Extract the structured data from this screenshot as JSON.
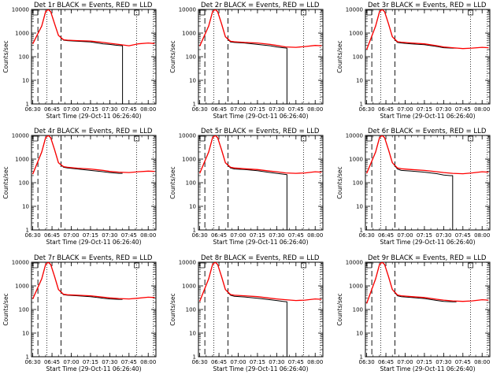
{
  "chart_data": [
    {
      "type": "line",
      "title": "Det 1r BLACK = Events, RED = LLD",
      "xlabel": "Start Time (29-Oct-11 06:26:40)",
      "ylabel": "Counts/sec",
      "x_ticks": [
        "06:30",
        "06:45",
        "07:00",
        "07:15",
        "07:30",
        "07:45",
        "08:00"
      ],
      "y_ticks": [
        "1",
        "10",
        "100",
        "1000",
        "10000"
      ],
      "xlim": [
        "06:29",
        "08:06"
      ],
      "ylim": [
        1,
        10000
      ],
      "y_scale": "log",
      "series": [
        {
          "color": "#000000",
          "x": [
            "06:30",
            "06:37",
            "06:40",
            "06:42",
            "06:44",
            "06:47",
            "06:50",
            "06:54",
            "06:57",
            "07:05",
            "07:15",
            "07:25",
            "07:30",
            "07:34",
            "07:37",
            "07:40",
            "07:40",
            "07:40"
          ],
          "y": [
            350,
            2000,
            8000,
            10000,
            8000,
            2500,
            800,
            500,
            480,
            450,
            420,
            350,
            330,
            310,
            300,
            290,
            1,
            1
          ]
        },
        {
          "color": "#ff0000",
          "x": [
            "06:30",
            "06:37",
            "06:40",
            "06:42",
            "06:44",
            "06:47",
            "06:50",
            "06:54",
            "06:57",
            "07:05",
            "07:15",
            "07:25",
            "07:30",
            "07:37",
            "07:45",
            "07:52",
            "08:00",
            "08:05"
          ],
          "y": [
            350,
            2000,
            8000,
            10000,
            8000,
            2500,
            800,
            520,
            500,
            480,
            460,
            400,
            370,
            330,
            290,
            350,
            380,
            360
          ]
        }
      ]
    },
    {
      "type": "line",
      "title": "Det 2r BLACK = Events, RED = LLD",
      "xlabel": "Start Time (29-Oct-11 06:26:40)",
      "ylabel": "Counts/sec",
      "x_ticks": [
        "06:30",
        "06:45",
        "07:00",
        "07:15",
        "07:30",
        "07:45",
        "08:00"
      ],
      "y_ticks": [
        "1",
        "10",
        "100",
        "1000",
        "10000"
      ],
      "xlim": [
        "06:29",
        "08:06"
      ],
      "ylim": [
        1,
        10000
      ],
      "y_scale": "log",
      "series": [
        {
          "color": "#000000",
          "x": [
            "06:30",
            "06:37",
            "06:40",
            "06:42",
            "06:44",
            "06:47",
            "06:50",
            "06:54",
            "06:57",
            "07:05",
            "07:15",
            "07:25",
            "07:30",
            "07:35",
            "07:38",
            "07:38",
            "07:38"
          ],
          "y": [
            280,
            2000,
            8000,
            10000,
            8000,
            2500,
            700,
            420,
            400,
            380,
            330,
            290,
            260,
            240,
            230,
            1,
            1
          ]
        },
        {
          "color": "#ff0000",
          "x": [
            "06:30",
            "06:37",
            "06:40",
            "06:42",
            "06:44",
            "06:47",
            "06:50",
            "06:54",
            "06:57",
            "07:05",
            "07:15",
            "07:25",
            "07:30",
            "07:37",
            "07:45",
            "07:52",
            "08:00",
            "08:05"
          ],
          "y": [
            280,
            2000,
            8000,
            10000,
            8000,
            2500,
            700,
            450,
            430,
            400,
            380,
            330,
            300,
            260,
            250,
            270,
            300,
            290
          ]
        }
      ]
    },
    {
      "type": "line",
      "title": "Det 3r BLACK = Events, RED = LLD",
      "xlabel": "Start Time (29-Oct-11 06:26:40)",
      "ylabel": "Counts/sec",
      "x_ticks": [
        "06:30",
        "06:45",
        "07:00",
        "07:15",
        "07:30",
        "07:45",
        "08:00"
      ],
      "y_ticks": [
        "1",
        "10",
        "100",
        "1000",
        "10000"
      ],
      "xlim": [
        "06:29",
        "08:06"
      ],
      "ylim": [
        1,
        10000
      ],
      "y_scale": "log",
      "series": [
        {
          "color": "#000000",
          "x": [
            "06:30",
            "06:37",
            "06:40",
            "06:42",
            "06:44",
            "06:47",
            "06:50",
            "06:54",
            "06:57",
            "07:05",
            "07:15",
            "07:25",
            "07:30",
            "07:37",
            "07:40"
          ],
          "y": [
            200,
            2000,
            8000,
            10000,
            8000,
            2500,
            700,
            400,
            380,
            350,
            320,
            270,
            240,
            230,
            230
          ]
        },
        {
          "color": "#ff0000",
          "x": [
            "06:30",
            "06:37",
            "06:40",
            "06:42",
            "06:44",
            "06:47",
            "06:50",
            "06:54",
            "06:57",
            "07:05",
            "07:15",
            "07:25",
            "07:30",
            "07:37",
            "07:45",
            "07:52",
            "08:00",
            "08:05"
          ],
          "y": [
            200,
            2000,
            8000,
            10000,
            8000,
            2500,
            700,
            430,
            410,
            380,
            350,
            290,
            260,
            240,
            220,
            230,
            250,
            240
          ]
        }
      ]
    },
    {
      "type": "line",
      "title": "Det 4r BLACK = Events, RED = LLD",
      "xlabel": "Start Time (29-Oct-11 06:26:40)",
      "ylabel": "Counts/sec",
      "x_ticks": [
        "06:30",
        "06:45",
        "07:00",
        "07:15",
        "07:30",
        "07:45",
        "08:00"
      ],
      "y_ticks": [
        "1",
        "10",
        "100",
        "1000",
        "10000"
      ],
      "xlim": [
        "06:29",
        "08:06"
      ],
      "ylim": [
        1,
        10000
      ],
      "y_scale": "log",
      "series": [
        {
          "color": "#000000",
          "x": [
            "06:30",
            "06:37",
            "06:40",
            "06:42",
            "06:44",
            "06:47",
            "06:50",
            "06:54",
            "06:57",
            "07:05",
            "07:15",
            "07:25",
            "07:30",
            "07:37",
            "07:40"
          ],
          "y": [
            230,
            2000,
            8000,
            10000,
            8000,
            2500,
            700,
            450,
            420,
            380,
            330,
            290,
            270,
            250,
            250
          ]
        },
        {
          "color": "#ff0000",
          "x": [
            "06:30",
            "06:37",
            "06:40",
            "06:42",
            "06:44",
            "06:47",
            "06:50",
            "06:54",
            "06:57",
            "07:05",
            "07:15",
            "07:25",
            "07:30",
            "07:37",
            "07:45",
            "07:52",
            "08:00",
            "08:05"
          ],
          "y": [
            230,
            2000,
            8000,
            10000,
            8000,
            2500,
            700,
            480,
            450,
            410,
            380,
            330,
            300,
            280,
            270,
            290,
            310,
            300
          ]
        }
      ]
    },
    {
      "type": "line",
      "title": "Det 5r BLACK = Events, RED = LLD",
      "xlabel": "Start Time (29-Oct-11 06:26:40)",
      "ylabel": "Counts/sec",
      "x_ticks": [
        "06:30",
        "06:45",
        "07:00",
        "07:15",
        "07:30",
        "07:45",
        "08:00"
      ],
      "y_ticks": [
        "1",
        "10",
        "100",
        "1000",
        "10000"
      ],
      "xlim": [
        "06:29",
        "08:06"
      ],
      "ylim": [
        1,
        10000
      ],
      "y_scale": "log",
      "series": [
        {
          "color": "#000000",
          "x": [
            "06:30",
            "06:37",
            "06:40",
            "06:42",
            "06:44",
            "06:47",
            "06:50",
            "06:54",
            "06:57",
            "07:05",
            "07:15",
            "07:25",
            "07:30",
            "07:35",
            "07:38",
            "07:38",
            "07:38"
          ],
          "y": [
            250,
            2000,
            8000,
            10000,
            8000,
            2500,
            700,
            420,
            380,
            360,
            320,
            270,
            250,
            230,
            220,
            1,
            1
          ]
        },
        {
          "color": "#ff0000",
          "x": [
            "06:30",
            "06:37",
            "06:40",
            "06:42",
            "06:44",
            "06:47",
            "06:50",
            "06:54",
            "06:57",
            "07:05",
            "07:15",
            "07:25",
            "07:30",
            "07:37",
            "07:45",
            "07:52",
            "08:00",
            "08:05"
          ],
          "y": [
            250,
            2000,
            8000,
            10000,
            8000,
            2500,
            700,
            450,
            420,
            390,
            360,
            310,
            290,
            260,
            250,
            260,
            290,
            280
          ]
        }
      ]
    },
    {
      "type": "line",
      "title": "Det 6r BLACK = Events, RED = LLD",
      "xlabel": "Start Time (29-Oct-11 06:26:40)",
      "ylabel": "Counts/sec",
      "x_ticks": [
        "06:30",
        "06:45",
        "07:00",
        "07:15",
        "07:30",
        "07:45",
        "08:00"
      ],
      "y_ticks": [
        "1",
        "10",
        "100",
        "1000",
        "10000"
      ],
      "xlim": [
        "06:29",
        "08:06"
      ],
      "ylim": [
        1,
        10000
      ],
      "y_scale": "log",
      "series": [
        {
          "color": "#000000",
          "x": [
            "06:30",
            "06:37",
            "06:40",
            "06:42",
            "06:44",
            "06:47",
            "06:50",
            "06:54",
            "06:57",
            "07:05",
            "07:15",
            "07:25",
            "07:30",
            "07:35",
            "07:37",
            "07:37",
            "07:37"
          ],
          "y": [
            250,
            2000,
            8000,
            10000,
            8000,
            2500,
            700,
            380,
            330,
            310,
            280,
            240,
            210,
            200,
            200,
            1,
            1
          ]
        },
        {
          "color": "#ff0000",
          "x": [
            "06:30",
            "06:37",
            "06:40",
            "06:42",
            "06:44",
            "06:47",
            "06:50",
            "06:54",
            "06:57",
            "07:05",
            "07:15",
            "07:25",
            "07:30",
            "07:37",
            "07:45",
            "07:52",
            "08:00",
            "08:05"
          ],
          "y": [
            250,
            2000,
            8000,
            10000,
            8000,
            2500,
            700,
            420,
            390,
            360,
            330,
            290,
            270,
            250,
            240,
            260,
            290,
            280
          ]
        }
      ]
    },
    {
      "type": "line",
      "title": "Det 7r BLACK = Events, RED = LLD",
      "xlabel": "Start Time (29-Oct-11 06:26:40)",
      "ylabel": "Counts/sec",
      "x_ticks": [
        "06:30",
        "06:45",
        "07:00",
        "07:15",
        "07:30",
        "07:45",
        "08:00"
      ],
      "y_ticks": [
        "1",
        "10",
        "100",
        "1000",
        "10000"
      ],
      "xlim": [
        "06:29",
        "08:06"
      ],
      "ylim": [
        1,
        10000
      ],
      "y_scale": "log",
      "series": [
        {
          "color": "#000000",
          "x": [
            "06:30",
            "06:37",
            "06:40",
            "06:42",
            "06:44",
            "06:47",
            "06:50",
            "06:54",
            "06:57",
            "07:05",
            "07:15",
            "07:25",
            "07:30",
            "07:37",
            "07:40"
          ],
          "y": [
            280,
            2000,
            8000,
            10000,
            8000,
            2500,
            700,
            420,
            400,
            380,
            350,
            300,
            280,
            270,
            270
          ]
        },
        {
          "color": "#ff0000",
          "x": [
            "06:30",
            "06:37",
            "06:40",
            "06:42",
            "06:44",
            "06:47",
            "06:50",
            "06:54",
            "06:57",
            "07:05",
            "07:15",
            "07:25",
            "07:30",
            "07:37",
            "07:45",
            "07:52",
            "08:00",
            "08:05"
          ],
          "y": [
            280,
            2000,
            8000,
            10000,
            8000,
            2500,
            700,
            440,
            420,
            400,
            380,
            330,
            310,
            290,
            280,
            300,
            330,
            320
          ]
        }
      ]
    },
    {
      "type": "line",
      "title": "Det 8r BLACK = Events, RED = LLD",
      "xlabel": "Start Time (29-Oct-11 06:26:40)",
      "ylabel": "Counts/sec",
      "x_ticks": [
        "06:30",
        "06:45",
        "07:00",
        "07:15",
        "07:30",
        "07:45",
        "08:00"
      ],
      "y_ticks": [
        "1",
        "10",
        "100",
        "1000",
        "10000"
      ],
      "xlim": [
        "06:29",
        "08:06"
      ],
      "ylim": [
        1,
        10000
      ],
      "y_scale": "log",
      "series": [
        {
          "color": "#000000",
          "x": [
            "06:30",
            "06:37",
            "06:40",
            "06:42",
            "06:44",
            "06:47",
            "06:50",
            "06:54",
            "06:57",
            "07:05",
            "07:15",
            "07:25",
            "07:30",
            "07:35",
            "07:38",
            "07:38",
            "07:38"
          ],
          "y": [
            220,
            2000,
            8000,
            10000,
            8000,
            2500,
            700,
            400,
            360,
            340,
            300,
            260,
            240,
            220,
            210,
            1,
            1
          ]
        },
        {
          "color": "#ff0000",
          "x": [
            "06:30",
            "06:37",
            "06:40",
            "06:42",
            "06:44",
            "06:47",
            "06:50",
            "06:54",
            "06:57",
            "07:05",
            "07:15",
            "07:25",
            "07:30",
            "07:37",
            "07:45",
            "07:52",
            "08:00",
            "08:05"
          ],
          "y": [
            220,
            2000,
            8000,
            10000,
            8000,
            2500,
            700,
            430,
            400,
            380,
            350,
            300,
            280,
            260,
            240,
            250,
            280,
            270
          ]
        }
      ]
    },
    {
      "type": "line",
      "title": "Det 9r BLACK = Events, RED = LLD",
      "xlabel": "Start Time (29-Oct-11 06:26:40)",
      "ylabel": "Counts/sec",
      "x_ticks": [
        "06:30",
        "06:45",
        "07:00",
        "07:15",
        "07:30",
        "07:45",
        "08:00"
      ],
      "y_ticks": [
        "1",
        "10",
        "100",
        "1000",
        "10000"
      ],
      "xlim": [
        "06:29",
        "08:06"
      ],
      "ylim": [
        1,
        10000
      ],
      "y_scale": "log",
      "series": [
        {
          "color": "#000000",
          "x": [
            "06:30",
            "06:37",
            "06:40",
            "06:42",
            "06:44",
            "06:47",
            "06:50",
            "06:54",
            "06:57",
            "07:05",
            "07:15",
            "07:25",
            "07:30",
            "07:37",
            "07:40"
          ],
          "y": [
            180,
            2000,
            8000,
            10000,
            8000,
            2500,
            700,
            380,
            350,
            320,
            290,
            240,
            220,
            210,
            210
          ]
        },
        {
          "color": "#ff0000",
          "x": [
            "06:30",
            "06:37",
            "06:40",
            "06:42",
            "06:44",
            "06:47",
            "06:50",
            "06:54",
            "06:57",
            "07:05",
            "07:15",
            "07:25",
            "07:30",
            "07:37",
            "07:45",
            "07:52",
            "08:00",
            "08:05"
          ],
          "y": [
            180,
            2000,
            8000,
            10000,
            8000,
            2500,
            700,
            410,
            380,
            350,
            320,
            270,
            250,
            230,
            220,
            230,
            260,
            250
          ]
        }
      ]
    }
  ],
  "markers": {
    "dashed_x": [
      "06:34",
      "06:52"
    ],
    "dotted_x": [
      "06:41",
      "07:51",
      "08:04"
    ],
    "box_x": [
      "06:32",
      "07:51"
    ]
  }
}
